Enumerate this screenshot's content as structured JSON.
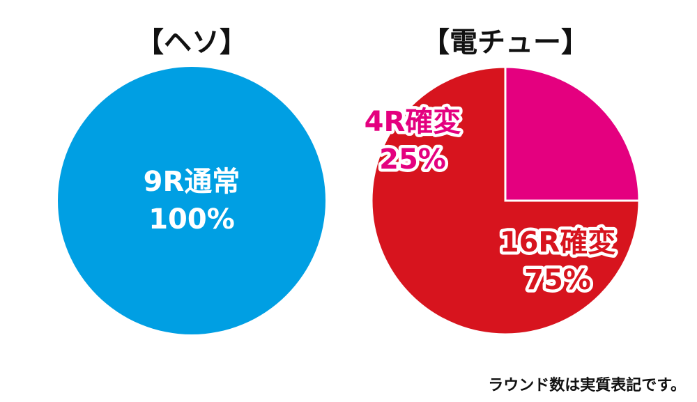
{
  "chart_data": [
    {
      "type": "pie",
      "title": "【ヘソ】",
      "slices": [
        {
          "label": "9R通常",
          "value": 100,
          "display": "100%",
          "color": "#009fe3"
        }
      ]
    },
    {
      "type": "pie",
      "title": "【電チュー】",
      "slices": [
        {
          "label": "4R確変",
          "value": 25,
          "display": "25%",
          "color": "#e4007f"
        },
        {
          "label": "16R確変",
          "value": 75,
          "display": "75%",
          "color": "#d7141e"
        }
      ]
    }
  ],
  "footnote": "ラウンド数は実質表記です。"
}
